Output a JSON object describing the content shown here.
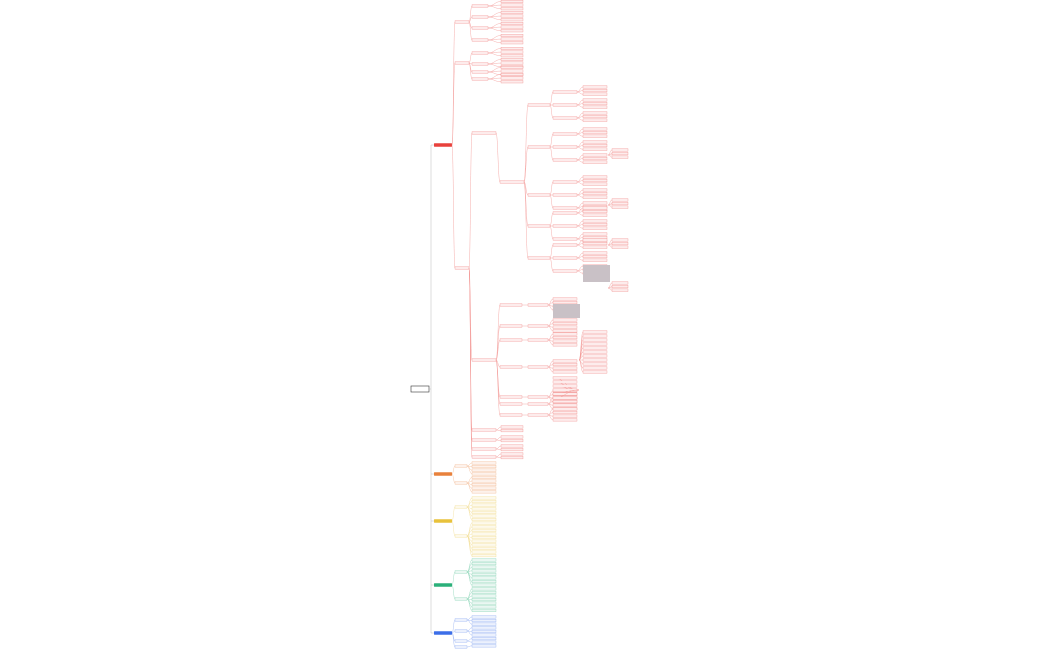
{
  "branches": [
    {
      "color": "#e8413c"
    },
    {
      "color": "#e8813c"
    },
    {
      "color": "#e8c23c"
    },
    {
      "color": "#2bb07a"
    },
    {
      "color": "#3c6ee8"
    }
  ]
}
